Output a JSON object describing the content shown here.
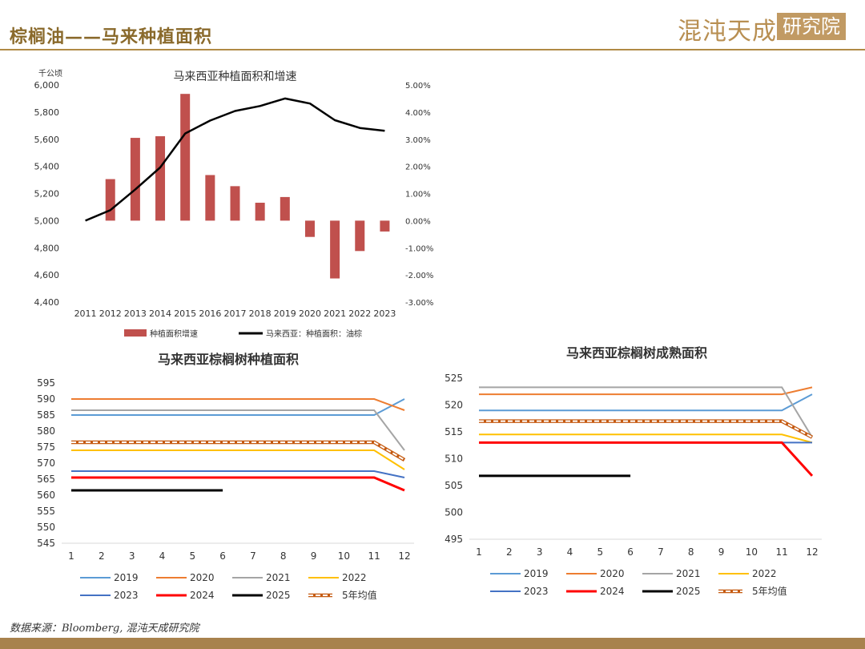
{
  "header": {
    "title": "棕榈油——马来种植面积",
    "logo_text": "混沌天成",
    "logo_box_text": "研究院"
  },
  "footer": {
    "source": "数据来源：Bloomberg, 混沌天成研究院"
  },
  "colors": {
    "brand": "#b08a45",
    "bar": "#c0504d"
  },
  "chart_data": [
    {
      "type": "bar+line",
      "title": "马来西亚种植面积和增速",
      "ylabel_left": "千公顷",
      "categories": [
        "2011",
        "2012",
        "2013",
        "2014",
        "2015",
        "2016",
        "2017",
        "2018",
        "2019",
        "2020",
        "2021",
        "2022",
        "2023"
      ],
      "ylim_left": [
        4400,
        6000
      ],
      "yticks_left": [
        "4,400",
        "4,600",
        "4,800",
        "5,000",
        "5,200",
        "5,400",
        "5,600",
        "5,800",
        "6,000"
      ],
      "ylim_right": [
        -0.03,
        0.05
      ],
      "yticks_right": [
        "-3.00%",
        "-2.00%",
        "-1.00%",
        "0.00%",
        "1.00%",
        "2.00%",
        "3.00%",
        "4.00%",
        "5.00%"
      ],
      "series": [
        {
          "name": "种植面积增速",
          "type": "bar",
          "axis": "right",
          "color": "#c0504d",
          "values": [
            null,
            0.0153,
            0.0305,
            0.0311,
            0.0467,
            0.0168,
            0.0127,
            0.0066,
            0.0087,
            -0.006,
            -0.0213,
            -0.0112,
            -0.004
          ]
        },
        {
          "name": "马来西亚：种植面积：油棕",
          "type": "line",
          "axis": "left",
          "color": "#000000",
          "values": [
            5000,
            5077,
            5230,
            5392,
            5642,
            5737,
            5808,
            5845,
            5900,
            5863,
            5740,
            5683,
            5662
          ]
        }
      ],
      "legend": "bottom"
    },
    {
      "type": "line",
      "title": "马来西亚棕榈树种植面积",
      "x": [
        1,
        2,
        3,
        4,
        5,
        6,
        7,
        8,
        9,
        10,
        11,
        12
      ],
      "ylim": [
        545,
        595
      ],
      "yticks": [
        545,
        550,
        555,
        560,
        565,
        570,
        575,
        580,
        585,
        590,
        595
      ],
      "series": [
        {
          "name": "2019",
          "color": "#5b9bd5",
          "values": [
            585,
            585,
            585,
            585,
            585,
            585,
            585,
            585,
            585,
            585,
            585,
            590
          ]
        },
        {
          "name": "2020",
          "color": "#ed7d31",
          "values": [
            590,
            590,
            590,
            590,
            590,
            590,
            590,
            590,
            590,
            590,
            590,
            586.5
          ]
        },
        {
          "name": "2021",
          "color": "#a5a5a5",
          "values": [
            586.5,
            586.5,
            586.5,
            586.5,
            586.5,
            586.5,
            586.5,
            586.5,
            586.5,
            586.5,
            586.5,
            574
          ]
        },
        {
          "name": "2022",
          "color": "#ffc000",
          "values": [
            574,
            574,
            574,
            574,
            574,
            574,
            574,
            574,
            574,
            574,
            574,
            568
          ]
        },
        {
          "name": "2023",
          "color": "#4472c4",
          "values": [
            567.5,
            567.5,
            567.5,
            567.5,
            567.5,
            567.5,
            567.5,
            567.5,
            567.5,
            567.5,
            567.5,
            565.5
          ]
        },
        {
          "name": "2024",
          "color": "#ff0000",
          "values": [
            565.5,
            565.5,
            565.5,
            565.5,
            565.5,
            565.5,
            565.5,
            565.5,
            565.5,
            565.5,
            565.5,
            561.5
          ]
        },
        {
          "name": "2025",
          "color": "#000000",
          "values": [
            561.5,
            561.5,
            561.5,
            561.5,
            561.5,
            561.5,
            null,
            null,
            null,
            null,
            null,
            null
          ]
        },
        {
          "name": "5年均值",
          "color": "#c55a11",
          "dashed": true,
          "values": [
            576.5,
            576.5,
            576.5,
            576.5,
            576.5,
            576.5,
            576.5,
            576.5,
            576.5,
            576.5,
            576.5,
            571
          ]
        }
      ],
      "legend": "bottom"
    },
    {
      "type": "line",
      "title": "马来西亚棕榈树成熟面积",
      "x": [
        1,
        2,
        3,
        4,
        5,
        6,
        7,
        8,
        9,
        10,
        11,
        12
      ],
      "ylim": [
        495,
        525
      ],
      "yticks": [
        495,
        500,
        505,
        510,
        515,
        520,
        525
      ],
      "series": [
        {
          "name": "2019",
          "color": "#5b9bd5",
          "values": [
            519,
            519,
            519,
            519,
            519,
            519,
            519,
            519,
            519,
            519,
            519,
            522
          ]
        },
        {
          "name": "2020",
          "color": "#ed7d31",
          "values": [
            522,
            522,
            522,
            522,
            522,
            522,
            522,
            522,
            522,
            522,
            522,
            523.3
          ]
        },
        {
          "name": "2021",
          "color": "#a5a5a5",
          "values": [
            523.3,
            523.3,
            523.3,
            523.3,
            523.3,
            523.3,
            523.3,
            523.3,
            523.3,
            523.3,
            523.3,
            514
          ]
        },
        {
          "name": "2022",
          "color": "#ffc000",
          "values": [
            514.5,
            514.5,
            514.5,
            514.5,
            514.5,
            514.5,
            514.5,
            514.5,
            514.5,
            514.5,
            514.5,
            513
          ]
        },
        {
          "name": "2023",
          "color": "#4472c4",
          "values": [
            513,
            513,
            513,
            513,
            513,
            513,
            513,
            513,
            513,
            513,
            513,
            513
          ]
        },
        {
          "name": "2024",
          "color": "#ff0000",
          "values": [
            513,
            513,
            513,
            513,
            513,
            513,
            513,
            513,
            513,
            513,
            513,
            506.8
          ]
        },
        {
          "name": "2025",
          "color": "#000000",
          "values": [
            506.8,
            506.8,
            506.8,
            506.8,
            506.8,
            506.8,
            null,
            null,
            null,
            null,
            null,
            null
          ]
        },
        {
          "name": "5年均值",
          "color": "#c55a11",
          "dashed": true,
          "values": [
            517,
            517,
            517,
            517,
            517,
            517,
            517,
            517,
            517,
            517,
            517,
            514
          ]
        }
      ],
      "legend": "bottom"
    }
  ]
}
